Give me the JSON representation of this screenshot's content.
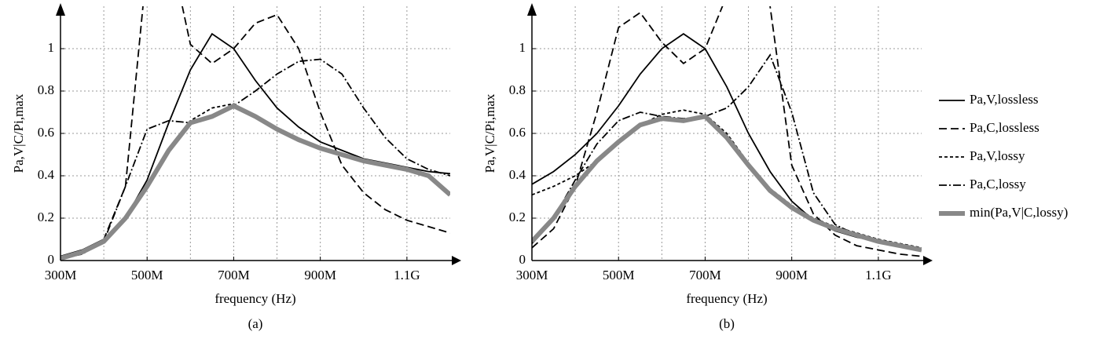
{
  "chart_data": [
    {
      "type": "line",
      "caption": "(a)",
      "xlabel": "frequency (Hz)",
      "ylabel": "Pa,V|C/Pi,max",
      "xlim": [
        300000000,
        1200000000
      ],
      "ylim": [
        0,
        1.2
      ],
      "xticks": [
        {
          "value": 300000000,
          "label": "300M"
        },
        {
          "value": 500000000,
          "label": "500M"
        },
        {
          "value": 700000000,
          "label": "700M"
        },
        {
          "value": 900000000,
          "label": "900M"
        },
        {
          "value": 1100000000,
          "label": "1.1G"
        }
      ],
      "xminorticks": [
        400000000,
        600000000,
        800000000,
        1000000000
      ],
      "yticks": [
        0,
        0.2,
        0.4,
        0.6,
        0.8,
        1
      ],
      "grid": true,
      "legend": "outside-right",
      "x": [
        300000000,
        350000000,
        400000000,
        450000000,
        500000000,
        550000000,
        600000000,
        650000000,
        700000000,
        750000000,
        800000000,
        850000000,
        900000000,
        950000000,
        1000000000,
        1050000000,
        1100000000,
        1150000000,
        1200000000
      ],
      "series": [
        {
          "name": "Pa,V,lossless",
          "color": "#000000",
          "dash": "none",
          "values": [
            0.02,
            0.05,
            0.1,
            0.2,
            0.38,
            0.65,
            0.9,
            1.07,
            1.0,
            0.85,
            0.72,
            0.63,
            0.56,
            0.52,
            0.48,
            0.46,
            0.44,
            0.42,
            0.41
          ]
        },
        {
          "name": "Pa,C,lossless",
          "color": "#000000",
          "dash": "10,5",
          "values": [
            0.01,
            0.03,
            0.1,
            0.35,
            1.4,
            1.5,
            1.02,
            0.93,
            1.0,
            1.12,
            1.16,
            1.0,
            0.7,
            0.45,
            0.32,
            0.24,
            0.19,
            0.16,
            0.13
          ]
        },
        {
          "name": "Pa,V,lossy",
          "color": "#000000",
          "dash": "4,3",
          "values": [
            0.01,
            0.04,
            0.1,
            0.2,
            0.35,
            0.52,
            0.66,
            0.72,
            0.74,
            0.68,
            0.62,
            0.57,
            0.53,
            0.5,
            0.47,
            0.45,
            0.43,
            0.4,
            0.32
          ]
        },
        {
          "name": "Pa,C,lossy",
          "color": "#000000",
          "dash": "10,3,2,3",
          "values": [
            0.01,
            0.03,
            0.09,
            0.35,
            0.62,
            0.66,
            0.65,
            0.68,
            0.73,
            0.8,
            0.88,
            0.94,
            0.95,
            0.88,
            0.72,
            0.58,
            0.48,
            0.43,
            0.4
          ]
        },
        {
          "name": "min(Pa,V|C,lossy)",
          "color": "#888888",
          "dash": "none",
          "width": 6,
          "values": [
            0.01,
            0.04,
            0.09,
            0.2,
            0.35,
            0.52,
            0.65,
            0.68,
            0.73,
            0.68,
            0.62,
            0.57,
            0.53,
            0.5,
            0.47,
            0.45,
            0.43,
            0.4,
            0.31
          ]
        }
      ]
    },
    {
      "type": "line",
      "caption": "(b)",
      "xlabel": "frequency (Hz)",
      "ylabel": "Pa,V|C/Pi,max",
      "xlim": [
        300000000,
        1200000000
      ],
      "ylim": [
        0,
        1.2
      ],
      "xticks": [
        {
          "value": 300000000,
          "label": "300M"
        },
        {
          "value": 500000000,
          "label": "500M"
        },
        {
          "value": 700000000,
          "label": "700M"
        },
        {
          "value": 900000000,
          "label": "900M"
        },
        {
          "value": 1100000000,
          "label": "1.1G"
        }
      ],
      "xminorticks": [
        400000000,
        600000000,
        800000000,
        1000000000
      ],
      "yticks": [
        0,
        0.2,
        0.4,
        0.6,
        0.8,
        1
      ],
      "grid": true,
      "legend": false,
      "x": [
        300000000,
        350000000,
        400000000,
        450000000,
        500000000,
        550000000,
        600000000,
        650000000,
        700000000,
        750000000,
        800000000,
        850000000,
        900000000,
        950000000,
        1000000000,
        1050000000,
        1100000000,
        1150000000,
        1200000000
      ],
      "series": [
        {
          "name": "Pa,V,lossless",
          "color": "#000000",
          "dash": "none",
          "values": [
            0.36,
            0.42,
            0.5,
            0.6,
            0.73,
            0.88,
            1.0,
            1.07,
            1.0,
            0.82,
            0.6,
            0.42,
            0.28,
            0.19,
            0.14,
            0.11,
            0.09,
            0.07,
            0.05
          ]
        },
        {
          "name": "Pa,C,lossless",
          "color": "#000000",
          "dash": "10,5",
          "values": [
            0.06,
            0.15,
            0.35,
            0.7,
            1.1,
            1.17,
            1.03,
            0.93,
            1.0,
            1.25,
            1.6,
            1.2,
            0.45,
            0.22,
            0.12,
            0.07,
            0.05,
            0.03,
            0.02
          ]
        },
        {
          "name": "Pa,V,lossy",
          "color": "#000000",
          "dash": "4,3",
          "values": [
            0.31,
            0.35,
            0.4,
            0.47,
            0.56,
            0.64,
            0.69,
            0.71,
            0.69,
            0.6,
            0.46,
            0.34,
            0.26,
            0.2,
            0.16,
            0.13,
            0.1,
            0.08,
            0.06
          ]
        },
        {
          "name": "Pa,C,lossy",
          "color": "#000000",
          "dash": "10,3,2,3",
          "values": [
            0.08,
            0.2,
            0.38,
            0.55,
            0.66,
            0.7,
            0.68,
            0.67,
            0.68,
            0.72,
            0.82,
            0.97,
            0.7,
            0.32,
            0.17,
            0.12,
            0.09,
            0.07,
            0.05
          ]
        },
        {
          "name": "min(Pa,V|C,lossy)",
          "color": "#888888",
          "dash": "none",
          "width": 6,
          "values": [
            0.09,
            0.2,
            0.35,
            0.47,
            0.56,
            0.64,
            0.67,
            0.66,
            0.68,
            0.58,
            0.45,
            0.33,
            0.25,
            0.19,
            0.15,
            0.12,
            0.09,
            0.07,
            0.05
          ]
        }
      ]
    }
  ]
}
